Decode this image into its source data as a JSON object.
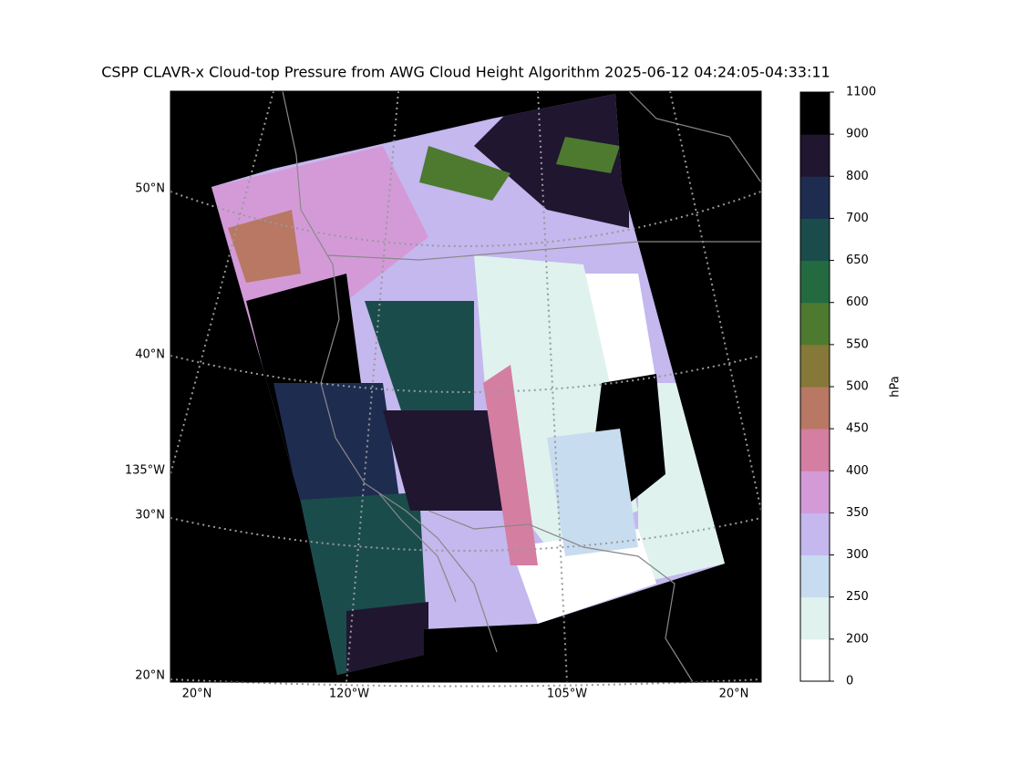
{
  "title": "CSPP CLAVR-x Cloud-top Pressure from AWG Cloud Height Algorithm 2025-06-12 04:24:05-04:33:11",
  "map": {
    "left_labels": [
      "50°N",
      "40°N",
      "135°W",
      "30°N",
      "20°N"
    ],
    "bottom_labels": [
      "20°N",
      "120°W",
      "105°W",
      "20°N"
    ]
  },
  "colorbar": {
    "label": "hPa",
    "ticks": [
      0,
      200,
      250,
      300,
      350,
      400,
      450,
      500,
      550,
      600,
      650,
      700,
      800,
      900,
      1100
    ],
    "colors": [
      "#ffffff",
      "#dff2ee",
      "#c8dcf0",
      "#c4b8ee",
      "#d49ad8",
      "#d47ea2",
      "#b87864",
      "#867838",
      "#4e7a30",
      "#246a40",
      "#1a4c4c",
      "#1e2c50",
      "#201630",
      "#000000"
    ]
  }
}
